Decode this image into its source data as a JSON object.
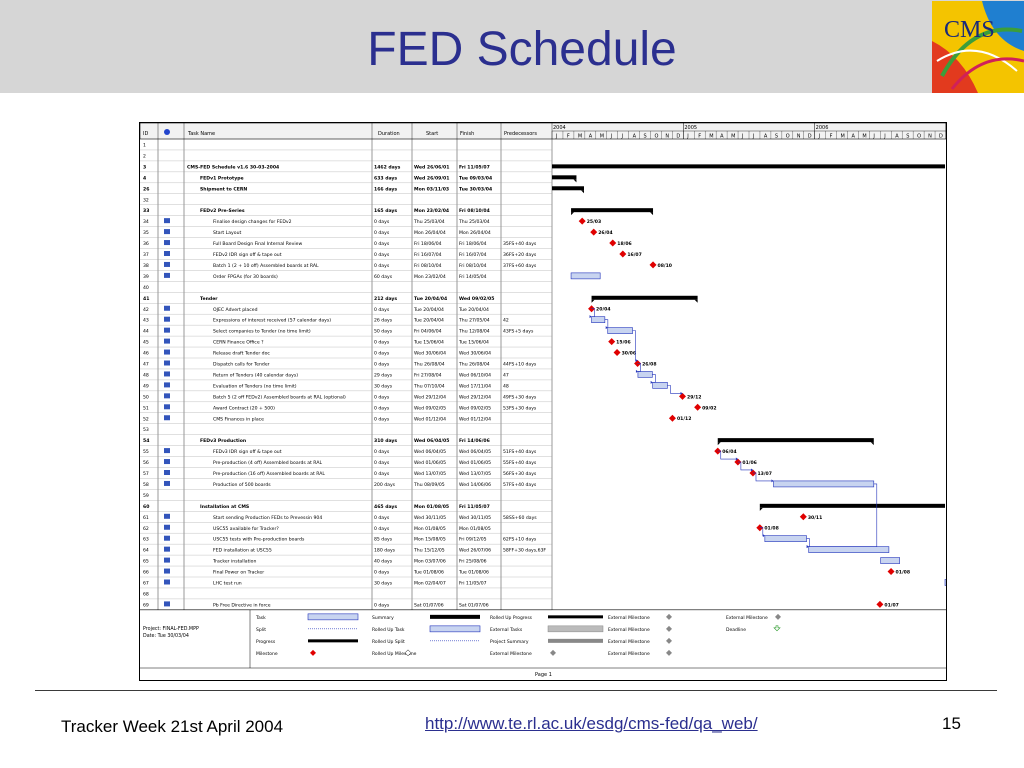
{
  "slide": {
    "title": "FED Schedule",
    "footer_left": "Tracker Week 21st April 2004",
    "footer_link": "http://www.te.rl.ac.uk/esdg/cms-fed/qa_web/",
    "page_number": "15"
  },
  "logo": {
    "text": "CMS"
  },
  "gantt": {
    "columns": [
      "ID",
      "Task Name",
      "Duration",
      "Start",
      "Finish",
      "Predecessors"
    ],
    "timeline": {
      "years": [
        "2004",
        "2005",
        "2006",
        "20"
      ],
      "months": [
        "J",
        "F",
        "M",
        "A",
        "M",
        "J",
        "J",
        "A",
        "S",
        "O",
        "N",
        "D",
        "J",
        "F",
        "M",
        "A",
        "M",
        "J",
        "J",
        "A",
        "S",
        "O",
        "N",
        "D",
        "J",
        "F",
        "M",
        "A",
        "M",
        "J",
        "J",
        "A",
        "S",
        "O",
        "N",
        "D"
      ]
    },
    "rows": [
      {
        "id": "1",
        "name": "",
        "duration": "",
        "start": "",
        "finish": "",
        "pred": ""
      },
      {
        "id": "2",
        "name": "",
        "duration": "",
        "start": "",
        "finish": "",
        "pred": ""
      },
      {
        "id": "3",
        "name": "CMS-FED Schedule v1.6 30-03-2004",
        "duration": "1462 days",
        "start": "Wed 26/06/01",
        "finish": "Fri 11/05/07",
        "pred": "",
        "summary": true
      },
      {
        "id": "4",
        "name": "FEDv1 Prototype",
        "duration": "633 days",
        "start": "Wed 26/09/01",
        "finish": "Tue 09/03/04",
        "pred": "",
        "summary": true
      },
      {
        "id": "26",
        "name": "Shipment to CERN",
        "duration": "166 days",
        "start": "Mon 03/11/03",
        "finish": "Tue 30/03/04",
        "pred": "",
        "summary": true
      },
      {
        "id": "32",
        "name": "",
        "duration": "",
        "start": "",
        "finish": "",
        "pred": ""
      },
      {
        "id": "33",
        "name": "FEDv2 Pre-Series",
        "duration": "165 days",
        "start": "Mon 23/02/04",
        "finish": "Fri 08/10/04",
        "pred": "",
        "summary": true
      },
      {
        "id": "34",
        "name": "Finalise design changes for FEDv2",
        "duration": "0 days",
        "start": "Thu 25/03/04",
        "finish": "Thu 25/03/04",
        "pred": ""
      },
      {
        "id": "35",
        "name": "Start Layout",
        "duration": "0 days",
        "start": "Mon 26/04/04",
        "finish": "Mon 26/04/04",
        "pred": ""
      },
      {
        "id": "36",
        "name": "Full Board Design Final Internal Review",
        "duration": "0 days",
        "start": "Fri 18/06/04",
        "finish": "Fri 18/06/04",
        "pred": "35FS+40 days"
      },
      {
        "id": "37",
        "name": "FEDv2 IDR sign off & tape out",
        "duration": "0 days",
        "start": "Fri 16/07/04",
        "finish": "Fri 16/07/04",
        "pred": "36FS+20 days"
      },
      {
        "id": "38",
        "name": "Batch 1 (2 + 10 off) Assembled boards at RAL",
        "duration": "0 days",
        "start": "Fri 08/10/04",
        "finish": "Fri 08/10/04",
        "pred": "37FS+60 days"
      },
      {
        "id": "39",
        "name": "Order FPGAs (for 30 boards)",
        "duration": "60 days",
        "start": "Mon 23/02/04",
        "finish": "Fri 14/05/04",
        "pred": ""
      },
      {
        "id": "40",
        "name": "",
        "duration": "",
        "start": "",
        "finish": "",
        "pred": ""
      },
      {
        "id": "41",
        "name": "Tender",
        "duration": "212 days",
        "start": "Tue 20/04/04",
        "finish": "Wed 09/02/05",
        "pred": "",
        "summary": true
      },
      {
        "id": "42",
        "name": "OJEC Advert placed",
        "duration": "0 days",
        "start": "Tue 20/04/04",
        "finish": "Tue 20/04/04",
        "pred": ""
      },
      {
        "id": "43",
        "name": "Expressions of interest received (57 calendar days)",
        "duration": "26 days",
        "start": "Tue 20/04/04",
        "finish": "Thu 27/05/04",
        "pred": "42"
      },
      {
        "id": "44",
        "name": "Select companies to Tender (no time limit)",
        "duration": "50 days",
        "start": "Fri 04/06/04",
        "finish": "Thu 12/08/04",
        "pred": "43FS+5 days"
      },
      {
        "id": "45",
        "name": "CERN Finance Office ?",
        "duration": "0 days",
        "start": "Tue 15/06/04",
        "finish": "Tue 15/06/04",
        "pred": ""
      },
      {
        "id": "46",
        "name": "Release draft Tender doc",
        "duration": "0 days",
        "start": "Wed 30/06/04",
        "finish": "Wed 30/06/04",
        "pred": ""
      },
      {
        "id": "47",
        "name": "Dispatch calls for Tender",
        "duration": "0 days",
        "start": "Thu 26/08/04",
        "finish": "Thu 26/08/04",
        "pred": "44FS+10 days"
      },
      {
        "id": "48",
        "name": "Return of Tenders (40 calendar days)",
        "duration": "29 days",
        "start": "Fri 27/08/04",
        "finish": "Wed 06/10/04",
        "pred": "47"
      },
      {
        "id": "49",
        "name": "Evaluation of Tenders (no time limit)",
        "duration": "30 days",
        "start": "Thu 07/10/04",
        "finish": "Wed 17/11/04",
        "pred": "48"
      },
      {
        "id": "50",
        "name": "Batch 5 (2 off FEDv2) Assembled boards at RAL (optional)",
        "duration": "0 days",
        "start": "Wed 29/12/04",
        "finish": "Wed 29/12/04",
        "pred": "49FS+30 days"
      },
      {
        "id": "51",
        "name": "Award Contract (20 + 500)",
        "duration": "0 days",
        "start": "Wed 09/02/05",
        "finish": "Wed 09/02/05",
        "pred": "53FS+30 days"
      },
      {
        "id": "52",
        "name": "CMS Finances in place",
        "duration": "0 days",
        "start": "Wed 01/12/04",
        "finish": "Wed 01/12/04",
        "pred": ""
      },
      {
        "id": "53",
        "name": "",
        "duration": "",
        "start": "",
        "finish": "",
        "pred": ""
      },
      {
        "id": "54",
        "name": "FEDv3 Production",
        "duration": "310 days",
        "start": "Wed 06/04/05",
        "finish": "Fri 14/06/06",
        "pred": "",
        "summary": true
      },
      {
        "id": "55",
        "name": "FEDv3 IDR sign off & tape out",
        "duration": "0 days",
        "start": "Wed 06/04/05",
        "finish": "Wed 06/04/05",
        "pred": "51FS+40 days"
      },
      {
        "id": "56",
        "name": "Pre-production (4 off) Assembled boards at RAL",
        "duration": "0 days",
        "start": "Wed 01/06/05",
        "finish": "Wed 01/06/05",
        "pred": "55FS+40 days"
      },
      {
        "id": "57",
        "name": "Pre-production (16 off) Assembled boards at RAL",
        "duration": "0 days",
        "start": "Wed 13/07/05",
        "finish": "Wed 13/07/05",
        "pred": "56FS+30 days"
      },
      {
        "id": "58",
        "name": "Production of 500 boards",
        "duration": "200 days",
        "start": "Thu 08/09/05",
        "finish": "Wed 14/06/06",
        "pred": "57FS+40 days"
      },
      {
        "id": "59",
        "name": "",
        "duration": "",
        "start": "",
        "finish": "",
        "pred": ""
      },
      {
        "id": "60",
        "name": "Installation at CMS",
        "duration": "465 days",
        "start": "Mon 01/08/05",
        "finish": "Fri 11/05/07",
        "pred": "",
        "summary": true
      },
      {
        "id": "61",
        "name": "Start sending Production FEDs to Prevessin 904",
        "duration": "0 days",
        "start": "Wed 30/11/05",
        "finish": "Wed 30/11/05",
        "pred": "58SS+60 days"
      },
      {
        "id": "62",
        "name": "USC55 available for Tracker?",
        "duration": "0 days",
        "start": "Mon 01/08/05",
        "finish": "Mon 01/08/05",
        "pred": ""
      },
      {
        "id": "63",
        "name": "USC55 tests with Pre-production boards",
        "duration": "85 days",
        "start": "Mon 15/08/05",
        "finish": "Fri 09/12/05",
        "pred": "62FS+10 days"
      },
      {
        "id": "64",
        "name": "FED installation at USC55",
        "duration": "180 days",
        "start": "Thu 15/12/05",
        "finish": "Wed 26/07/06",
        "pred": "58FF+30 days,63F"
      },
      {
        "id": "65",
        "name": "Tracker installation",
        "duration": "40 days",
        "start": "Mon 03/07/06",
        "finish": "Fri 25/08/06",
        "pred": ""
      },
      {
        "id": "66",
        "name": "Final Power on Tracker",
        "duration": "0 days",
        "start": "Tue 01/08/06",
        "finish": "Tue 01/08/06",
        "pred": ""
      },
      {
        "id": "67",
        "name": "LHC test run",
        "duration": "30 days",
        "start": "Mon 02/04/07",
        "finish": "Fri 11/05/07",
        "pred": ""
      },
      {
        "id": "68",
        "name": "",
        "duration": "",
        "start": "",
        "finish": "",
        "pred": ""
      },
      {
        "id": "69",
        "name": "Pb Free Directive in force",
        "duration": "0 days",
        "start": "Sat 01/07/06",
        "finish": "Sat 01/07/06",
        "pred": ""
      }
    ],
    "milestone_labels": [
      {
        "row": 7,
        "text": "25/03"
      },
      {
        "row": 8,
        "text": "26/04"
      },
      {
        "row": 9,
        "text": "18/06"
      },
      {
        "row": 10,
        "text": "16/07"
      },
      {
        "row": 11,
        "text": "08/10"
      },
      {
        "row": 15,
        "text": "20/04"
      },
      {
        "row": 18,
        "text": "15/06"
      },
      {
        "row": 19,
        "text": "30/06"
      },
      {
        "row": 20,
        "text": "26/08"
      },
      {
        "row": 23,
        "text": "29/12"
      },
      {
        "row": 24,
        "text": "09/02"
      },
      {
        "row": 25,
        "text": "01/12"
      },
      {
        "row": 28,
        "text": "06/04"
      },
      {
        "row": 29,
        "text": "01/06"
      },
      {
        "row": 30,
        "text": "13/07"
      },
      {
        "row": 34,
        "text": "30/11"
      },
      {
        "row": 35,
        "text": "01/08"
      },
      {
        "row": 39,
        "text": "01/08"
      },
      {
        "row": 42,
        "text": "01/07"
      }
    ],
    "project_info": {
      "project": "Project: FINAL-FED.MPP",
      "date": "Date: Tue 30/03/04"
    },
    "legend": [
      [
        "Task",
        "Summary",
        "Rolled Up Progress",
        "External Milestone",
        "External Milestone"
      ],
      [
        "Split",
        "Rolled Up Task",
        "External Tasks",
        "External Milestone",
        "Deadline"
      ],
      [
        "Progress",
        "Rolled Up Split",
        "Project Summary",
        "External Milestone",
        ""
      ],
      [
        "Milestone",
        "Rolled Up Milestone",
        "External Milestone",
        "External Milestone",
        ""
      ]
    ],
    "page_label": "Page 1"
  },
  "colors": {
    "title": "#2b2f8f",
    "band": "#d6d6d6",
    "milestone": "#e00000",
    "task_fill": "#c8d4f0",
    "task_stroke": "#2233bb",
    "summary": "#000000",
    "link": "#2b2f8f"
  }
}
